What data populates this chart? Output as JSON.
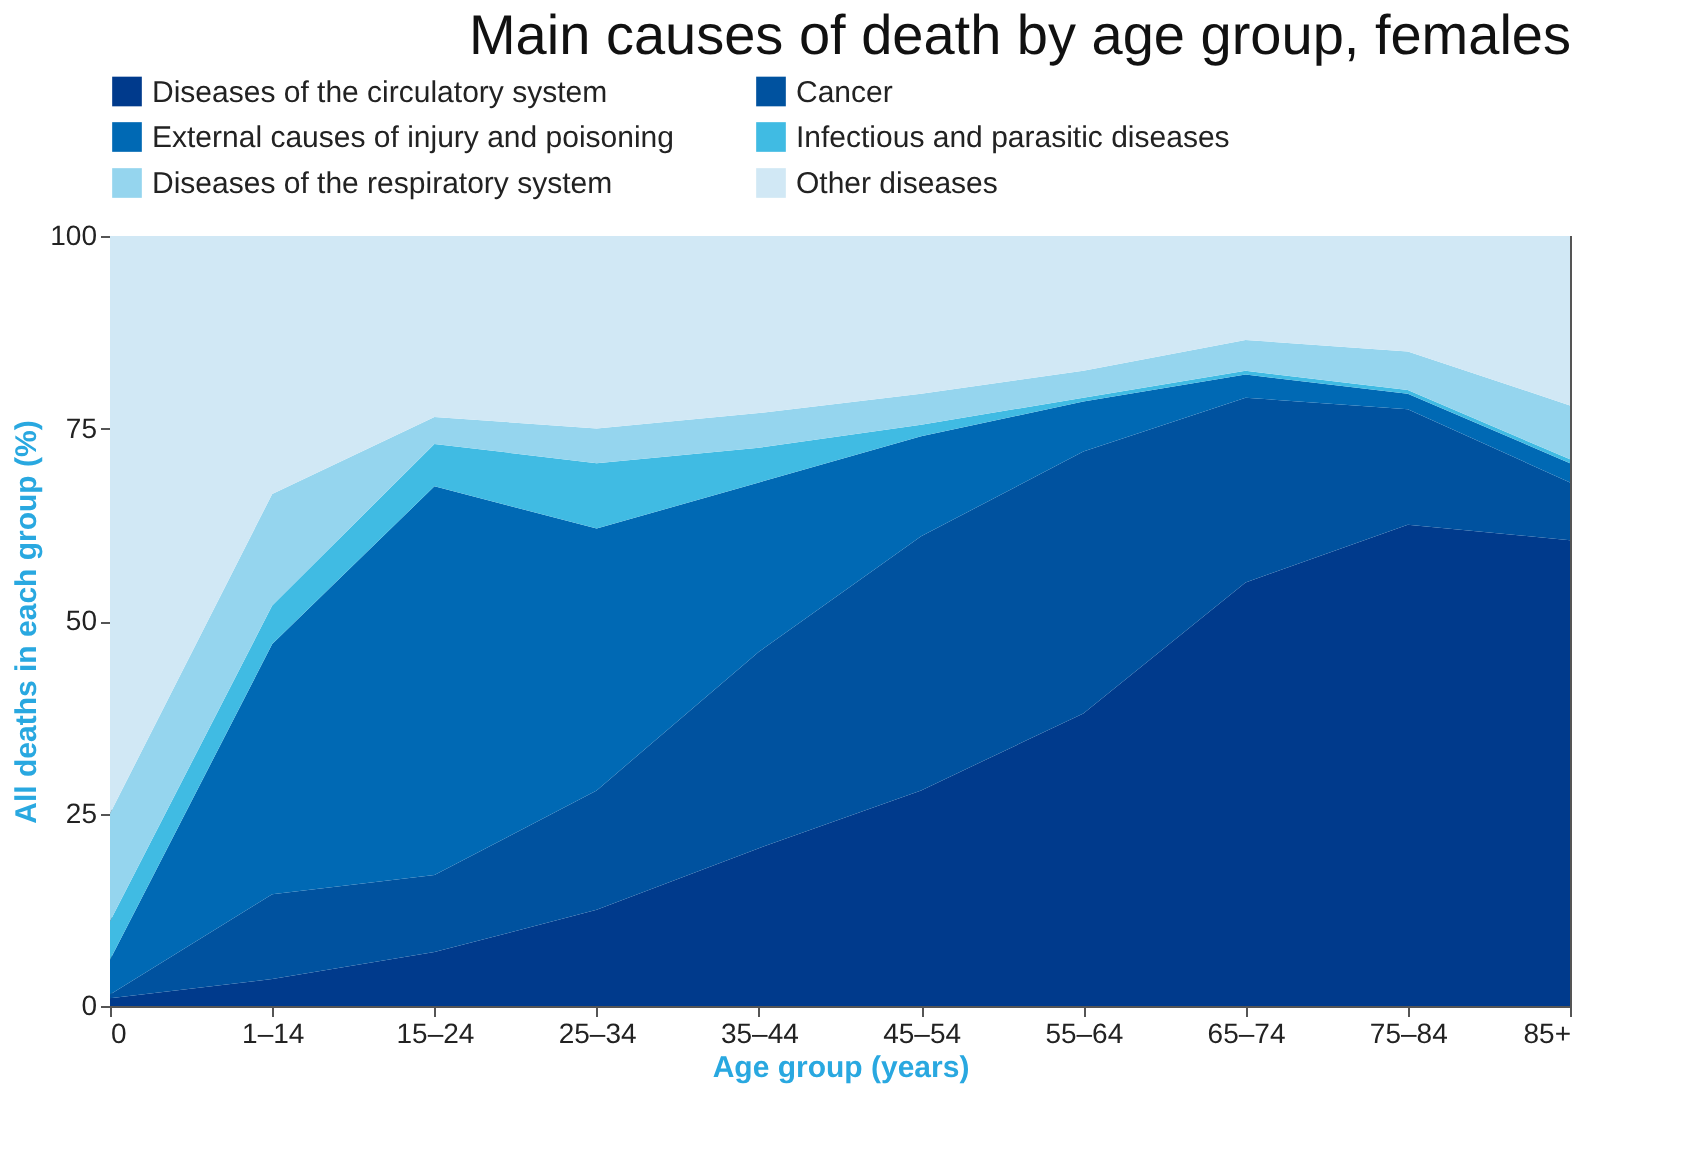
{
  "chart_data": {
    "type": "area",
    "stacked": true,
    "title": "Main causes of death by age group, females",
    "xlabel": "Age group (years)",
    "ylabel": "All deaths in each group (%)",
    "categories": [
      "0",
      "1–14",
      "15–24",
      "25–34",
      "35–44",
      "45–54",
      "55–64",
      "65–74",
      "75–84",
      "85+"
    ],
    "ylim": [
      0,
      100
    ],
    "yticks": [
      0,
      25,
      50,
      75,
      100
    ],
    "grid": false,
    "legend": "top",
    "series": [
      {
        "name": "Diseases of the circulatory system",
        "color": "#003a8c",
        "values": [
          1,
          3.5,
          7,
          12.5,
          20.5,
          28,
          38,
          55,
          62.5,
          60.5
        ]
      },
      {
        "name": "Cancer",
        "color": "#00529f",
        "values": [
          0.5,
          11,
          10,
          15.5,
          25.5,
          33,
          34,
          24,
          15,
          7.5
        ]
      },
      {
        "name": "External causes of injury and poisoning",
        "color": "#0069b4",
        "values": [
          4.5,
          32.5,
          50.5,
          34,
          22,
          13,
          6.5,
          3,
          2,
          2.5
        ]
      },
      {
        "name": "Infectious and parasitic diseases",
        "color": "#40bbe3",
        "values": [
          5,
          5,
          5.5,
          8.5,
          4.5,
          1.5,
          0.5,
          0.5,
          0.5,
          0.5
        ]
      },
      {
        "name": "Diseases of the respiratory system",
        "color": "#95d5ee",
        "values": [
          14,
          14.5,
          3.5,
          4.5,
          4.5,
          4,
          3.5,
          4,
          5,
          7
        ]
      },
      {
        "name": "Other diseases",
        "color": "#d1e8f5",
        "values": [
          75,
          33.5,
          23.5,
          25,
          23,
          20.5,
          17.5,
          13.5,
          15,
          22
        ]
      }
    ]
  }
}
